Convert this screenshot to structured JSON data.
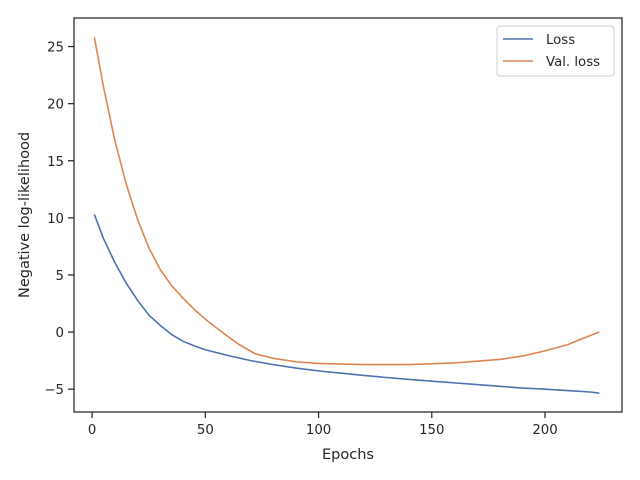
{
  "chart_data": {
    "type": "line",
    "xlabel": "Epochs",
    "ylabel": "Negative log-likelihood",
    "xlim": [
      -8,
      234
    ],
    "ylim": [
      -7,
      27.5
    ],
    "xticks": [
      0,
      50,
      100,
      150,
      200
    ],
    "yticks": [
      -5,
      0,
      5,
      10,
      15,
      20,
      25
    ],
    "grid": false,
    "legend_position": "top-right",
    "series": [
      {
        "name": "Loss",
        "color": "#4c72b0",
        "x": [
          1,
          5,
          10,
          15,
          20,
          25,
          30,
          35,
          40,
          45,
          50,
          60,
          70,
          80,
          90,
          100,
          110,
          120,
          130,
          140,
          150,
          160,
          170,
          180,
          190,
          200,
          210,
          220,
          224
        ],
        "y": [
          10.3,
          8.2,
          6.1,
          4.3,
          2.8,
          1.5,
          0.6,
          -0.2,
          -0.8,
          -1.2,
          -1.55,
          -2.05,
          -2.5,
          -2.85,
          -3.15,
          -3.4,
          -3.6,
          -3.8,
          -3.98,
          -4.15,
          -4.3,
          -4.45,
          -4.6,
          -4.75,
          -4.9,
          -5.0,
          -5.12,
          -5.25,
          -5.35
        ]
      },
      {
        "name": "Val. loss",
        "color": "#dd8452",
        "x": [
          1,
          5,
          10,
          15,
          20,
          25,
          30,
          35,
          40,
          45,
          52,
          60,
          65,
          72,
          80,
          90,
          100,
          120,
          140,
          160,
          180,
          190,
          200,
          210,
          215,
          220,
          224
        ],
        "y": [
          25.8,
          21.5,
          16.8,
          13.0,
          9.9,
          7.4,
          5.5,
          4.1,
          3.0,
          2.0,
          0.8,
          -0.4,
          -1.1,
          -1.9,
          -2.3,
          -2.6,
          -2.75,
          -2.85,
          -2.85,
          -2.7,
          -2.4,
          -2.1,
          -1.65,
          -1.1,
          -0.7,
          -0.3,
          0.0
        ]
      }
    ]
  }
}
